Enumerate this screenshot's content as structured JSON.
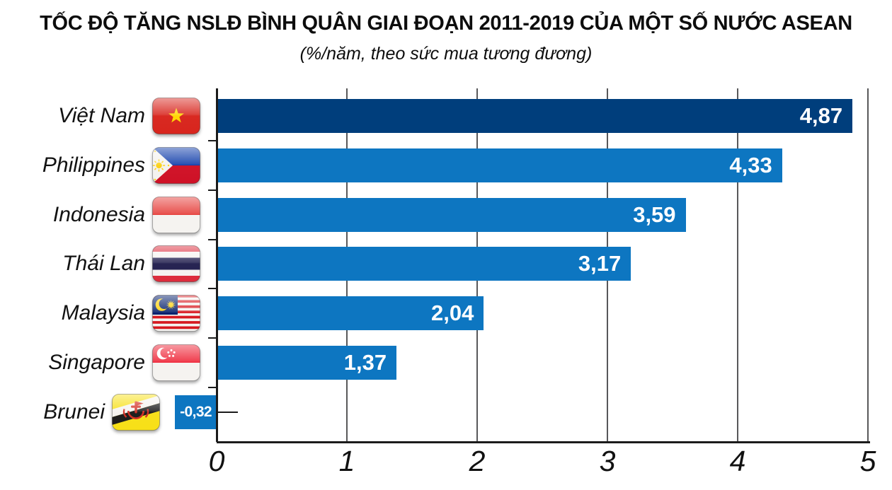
{
  "header": {
    "title": "TỐC ĐỘ TĂNG NSLĐ BÌNH QUÂN GIAI ĐOẠN 2011-2019 CỦA MỘT SỐ NƯỚC ASEAN",
    "subtitle": "(%/năm, theo sức mua tương đương)"
  },
  "chart_data": {
    "type": "bar",
    "orientation": "horizontal",
    "title": "TỐC ĐỘ TĂNG NSLĐ BÌNH QUÂN GIAI ĐOẠN 2011-2019 CỦA MỘT SỐ NƯỚC ASEAN",
    "subtitle": "(%/năm, theo sức mua tương đương)",
    "categories": [
      "Việt Nam",
      "Philippines",
      "Indonesia",
      "Thái Lan",
      "Malaysia",
      "Singapore",
      "Brunei"
    ],
    "values": [
      4.87,
      4.33,
      3.59,
      3.17,
      2.04,
      1.37,
      -0.32
    ],
    "value_labels": [
      "4,87",
      "4,33",
      "3,59",
      "3,17",
      "2,04",
      "1,37",
      "-0,32"
    ],
    "flag_icons": [
      "vietnam-flag-icon",
      "philippines-flag-icon",
      "indonesia-flag-icon",
      "thailand-flag-icon",
      "malaysia-flag-icon",
      "singapore-flag-icon",
      "brunei-flag-icon"
    ],
    "country_slugs": [
      "viet-nam",
      "philippines",
      "indonesia",
      "thai-lan",
      "malaysia",
      "singapore",
      "brunei"
    ],
    "x_tick_labels": [
      "0",
      "1",
      "2",
      "3",
      "4",
      "5"
    ],
    "x_ticks": [
      0,
      1,
      2,
      3,
      4,
      5
    ],
    "xlim": [
      -0.45,
      5
    ],
    "xlabel": "",
    "ylabel": "",
    "grid": true,
    "legend": false,
    "colors": {
      "highlight_bar": "#003e7c",
      "default_bar": "#0d76c1",
      "gridline": "#58585a",
      "axis": "#1b1b1b",
      "value_text": "#ffffff",
      "label_text": "#121212"
    },
    "highlight_index": 0
  }
}
